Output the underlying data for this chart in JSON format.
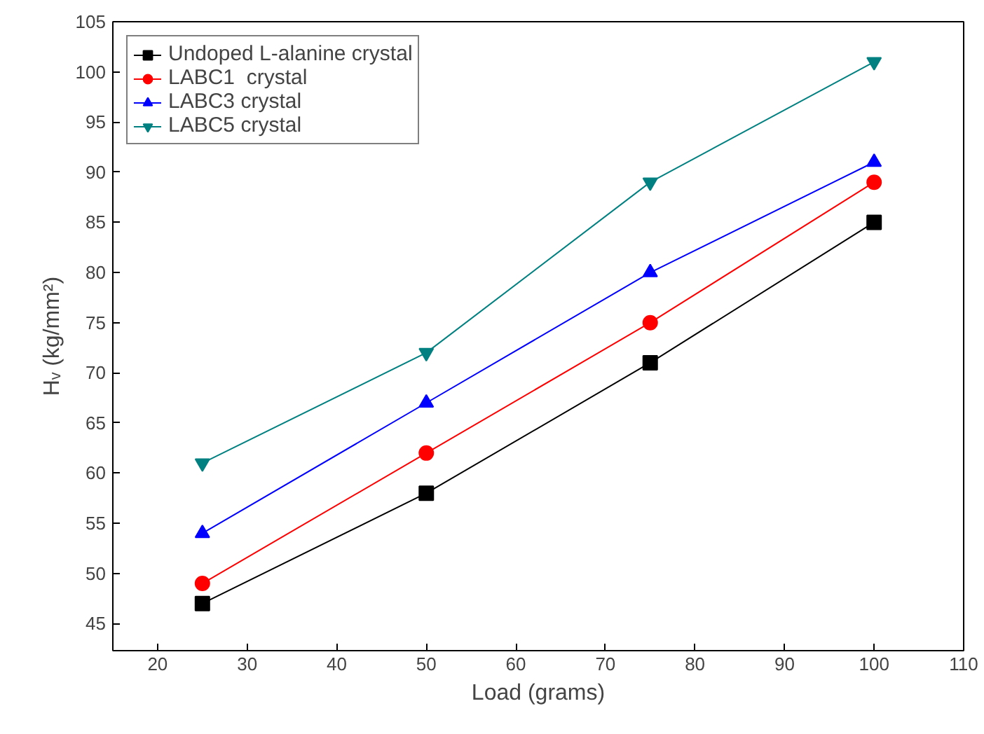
{
  "chart_data": {
    "type": "line",
    "xlabel": "Load (grams)",
    "ylabel": "Hᵥ (kg/mm²)",
    "x": [
      25,
      50,
      75,
      100
    ],
    "series": [
      {
        "name": "Undoped L-alanine crystal",
        "color": "#000000",
        "marker": "square",
        "values": [
          47,
          58,
          71,
          85
        ]
      },
      {
        "name": "LABC1  crystal",
        "color": "#ff0000",
        "marker": "circle",
        "values": [
          49,
          62,
          75,
          89
        ]
      },
      {
        "name": "LABC3 crystal",
        "color": "#0000ff",
        "marker": "triangle",
        "values": [
          54,
          67,
          80,
          91
        ]
      },
      {
        "name": "LABC5 crystal",
        "color": "#008080",
        "marker": "triangle",
        "values": [
          61,
          72,
          89,
          101
        ]
      }
    ],
    "xlim": [
      15,
      110
    ],
    "xticks": [
      20,
      30,
      40,
      50,
      60,
      70,
      80,
      90,
      100,
      110
    ],
    "ylim": [
      42.3,
      105
    ],
    "yticks": [
      45,
      50,
      55,
      60,
      65,
      70,
      75,
      80,
      85,
      90,
      95,
      100,
      105
    ],
    "grid": false,
    "legend": "top left",
    "line_style": "solid"
  }
}
